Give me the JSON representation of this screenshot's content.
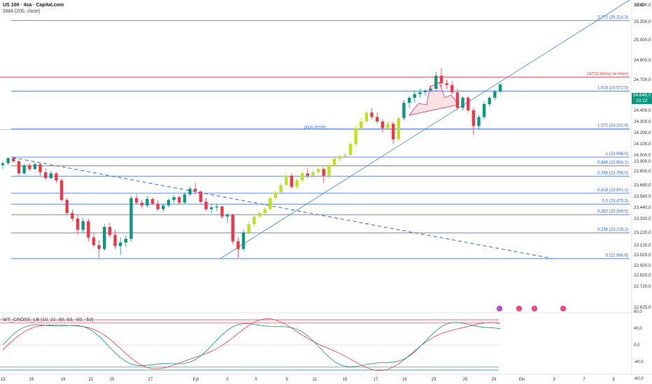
{
  "header": {
    "title": "US 100 · 4sa · Capital.com",
    "indicator": "SMA (200, close)",
    "currency": "USD"
  },
  "oscillator": {
    "title": "WT_CROSS_LB (10, 21, 60, 53, -60, -53)"
  },
  "price_tag": {
    "price": "24.648,2",
    "countdown": "02:22"
  },
  "colors": {
    "up": "#089981",
    "down": "#f23645",
    "lime": "#bfe31b",
    "fib": "#2962ff",
    "resistance": "#f23645",
    "trend": "#4a90e2"
  },
  "chart_data": {
    "type": "candlestick",
    "y_axis": {
      "range": [
        22620,
        25560
      ],
      "tick_labels": [
        "25.400,0",
        "25.200,0",
        "25.000,0",
        "24.800,0",
        "24.700,0",
        "24.500,0",
        "24.400,0",
        "24.300,0",
        "24.200,0",
        "24.100,0",
        "24.000,0",
        "23.900,0",
        "23.800,0",
        "23.680,0",
        "23.560,0",
        "23.440,0",
        "23.320,0",
        "23.220,0",
        "23.120,0",
        "23.020,0",
        "22.920,0",
        "22.820,0",
        "22.720,0",
        "22.625,0"
      ],
      "tick_values": [
        25400,
        25200,
        25000,
        24800,
        24700,
        24500,
        24400,
        24300,
        24200,
        24100,
        24000,
        23900,
        23800,
        23680,
        23560,
        23440,
        23320,
        23220,
        23120,
        23020,
        22920,
        22820,
        22720,
        22625
      ]
    },
    "x_axis": {
      "labels": [
        "13",
        "15",
        "19",
        "21",
        "25",
        "27",
        "Eyl",
        "3",
        "5",
        "9",
        "11",
        "15",
        "17",
        "19",
        "23",
        "25",
        "29",
        "Eki",
        "3",
        "7",
        "9"
      ]
    },
    "fib_levels": [
      {
        "label": "2,272 (25.214,3)",
        "value": 25214.3
      },
      {
        "label": "1,618 (24.572,5)",
        "value": 24572.5
      },
      {
        "label": "1,272 (24.232,9)",
        "value": 24232.9
      },
      {
        "label": "1 (23.966,0)",
        "value": 23966.0
      },
      {
        "label": "0,886 (23.854,1)",
        "value": 23854.1
      },
      {
        "label": "0,786 (23.756,0)",
        "value": 23756.0
      },
      {
        "label": "0,618 (23.591,1)",
        "value": 23591.1
      },
      {
        "label": "0,5 (23.475,3)",
        "value": 23475.3
      },
      {
        "label": "0,382 (23.359,5)",
        "value": 23359.5
      },
      {
        "label": "0,236 (23.216,2)",
        "value": 23216.2
      },
      {
        "label": "0 (22.984,6)",
        "value": 22984.6
      }
    ],
    "resistance": {
      "label": "24713 direnç ve retest",
      "value": 24713
    },
    "support_note": {
      "label": "güçlü destek",
      "value": 24232.9
    },
    "last_price": 24648.2,
    "oscillator_axis": {
      "labels": [
        "80,0",
        "40,0",
        "0,0",
        "-40,0",
        "-80,0"
      ],
      "values": [
        80,
        40,
        0,
        -40,
        -80
      ],
      "bands": [
        60,
        53,
        -53,
        -60
      ]
    },
    "candles": [
      [
        23860,
        23900,
        23820,
        23880
      ],
      [
        23880,
        23960,
        23860,
        23950
      ],
      [
        23950,
        23960,
        23890,
        23900
      ],
      [
        23900,
        23920,
        23760,
        23780
      ],
      [
        23780,
        23870,
        23770,
        23860
      ],
      [
        23860,
        23880,
        23800,
        23820
      ],
      [
        23820,
        23890,
        23810,
        23870
      ],
      [
        23870,
        23880,
        23760,
        23790
      ],
      [
        23790,
        23830,
        23720,
        23740
      ],
      [
        23740,
        23800,
        23730,
        23780
      ],
      [
        23780,
        23790,
        23700,
        23720
      ],
      [
        23720,
        23740,
        23500,
        23520
      ],
      [
        23520,
        23540,
        23360,
        23380
      ],
      [
        23380,
        23420,
        23300,
        23320
      ],
      [
        23320,
        23360,
        23200,
        23240
      ],
      [
        23240,
        23330,
        23220,
        23300
      ],
      [
        23300,
        23320,
        23150,
        23180
      ],
      [
        23180,
        23220,
        23100,
        23120
      ],
      [
        23120,
        23160,
        22990,
        23080
      ],
      [
        23080,
        23280,
        23060,
        23260
      ],
      [
        23260,
        23290,
        23180,
        23200
      ],
      [
        23200,
        23240,
        23080,
        23110
      ],
      [
        23110,
        23180,
        23020,
        23140
      ],
      [
        23140,
        23200,
        23100,
        23170
      ],
      [
        23170,
        23560,
        23150,
        23540
      ],
      [
        23540,
        23580,
        23470,
        23490
      ],
      [
        23490,
        23520,
        23430,
        23460
      ],
      [
        23460,
        23560,
        23440,
        23530
      ],
      [
        23530,
        23550,
        23460,
        23480
      ],
      [
        23480,
        23520,
        23400,
        23420
      ],
      [
        23420,
        23480,
        23390,
        23460
      ],
      [
        23460,
        23540,
        23440,
        23520
      ],
      [
        23520,
        23570,
        23490,
        23550
      ],
      [
        23550,
        23560,
        23470,
        23490
      ],
      [
        23490,
        23600,
        23480,
        23580
      ],
      [
        23580,
        23660,
        23560,
        23640
      ],
      [
        23640,
        23700,
        23580,
        23610
      ],
      [
        23610,
        23620,
        23480,
        23500
      ],
      [
        23500,
        23540,
        23400,
        23420
      ],
      [
        23420,
        23470,
        23380,
        23440
      ],
      [
        23440,
        23480,
        23400,
        23450
      ],
      [
        23450,
        23460,
        23320,
        23340
      ],
      [
        23340,
        23380,
        23290,
        23360
      ],
      [
        23360,
        23370,
        23130,
        23150
      ],
      [
        23150,
        23180,
        22990,
        23080
      ],
      [
        23080,
        23240,
        23060,
        23220
      ],
      [
        23220,
        23300,
        23200,
        23280
      ],
      [
        23280,
        23360,
        23260,
        23340
      ],
      [
        23340,
        23400,
        23320,
        23380
      ],
      [
        23380,
        23440,
        23360,
        23420
      ],
      [
        23420,
        23560,
        23410,
        23540
      ],
      [
        23540,
        23620,
        23520,
        23600
      ],
      [
        23600,
        23700,
        23580,
        23680
      ],
      [
        23680,
        23790,
        23660,
        23760
      ],
      [
        23760,
        23780,
        23640,
        23660
      ],
      [
        23660,
        23740,
        23640,
        23720
      ],
      [
        23720,
        23800,
        23700,
        23780
      ],
      [
        23780,
        23830,
        23740,
        23760
      ],
      [
        23760,
        23810,
        23740,
        23790
      ],
      [
        23790,
        23840,
        23770,
        23820
      ],
      [
        23820,
        23840,
        23700,
        23760
      ],
      [
        23760,
        23880,
        23740,
        23860
      ],
      [
        23860,
        23960,
        23840,
        23940
      ],
      [
        23940,
        24000,
        23900,
        23980
      ],
      [
        23980,
        24020,
        23950,
        24000
      ],
      [
        24000,
        24120,
        23990,
        24100
      ],
      [
        24100,
        24260,
        24080,
        24240
      ],
      [
        24240,
        24330,
        24220,
        24300
      ],
      [
        24300,
        24400,
        24280,
        24380
      ],
      [
        24380,
        24420,
        24320,
        24340
      ],
      [
        24340,
        24380,
        24280,
        24300
      ],
      [
        24300,
        24320,
        24200,
        24240
      ],
      [
        24240,
        24300,
        24220,
        24280
      ],
      [
        24280,
        24300,
        24100,
        24140
      ],
      [
        24140,
        24350,
        24120,
        24330
      ],
      [
        24330,
        24480,
        24310,
        24460
      ],
      [
        24460,
        24520,
        24420,
        24500
      ],
      [
        24500,
        24580,
        24460,
        24540
      ],
      [
        24540,
        24600,
        24500,
        24560
      ],
      [
        24560,
        24590,
        24520,
        24580
      ],
      [
        24580,
        24640,
        24560,
        24600
      ],
      [
        24600,
        24740,
        24580,
        24720
      ],
      [
        24720,
        24760,
        24620,
        24660
      ],
      [
        24660,
        24700,
        24600,
        24640
      ],
      [
        24640,
        24680,
        24540,
        24560
      ],
      [
        24560,
        24600,
        24400,
        24420
      ],
      [
        24420,
        24520,
        24400,
        24500
      ],
      [
        24500,
        24520,
        24380,
        24400
      ],
      [
        24400,
        24420,
        24180,
        24260
      ],
      [
        24260,
        24360,
        24230,
        24340
      ],
      [
        24340,
        24470,
        24320,
        24450
      ],
      [
        24450,
        24520,
        24430,
        24500
      ],
      [
        24500,
        24590,
        24480,
        24570
      ],
      [
        24570,
        24660,
        24550,
        24648
      ]
    ]
  }
}
